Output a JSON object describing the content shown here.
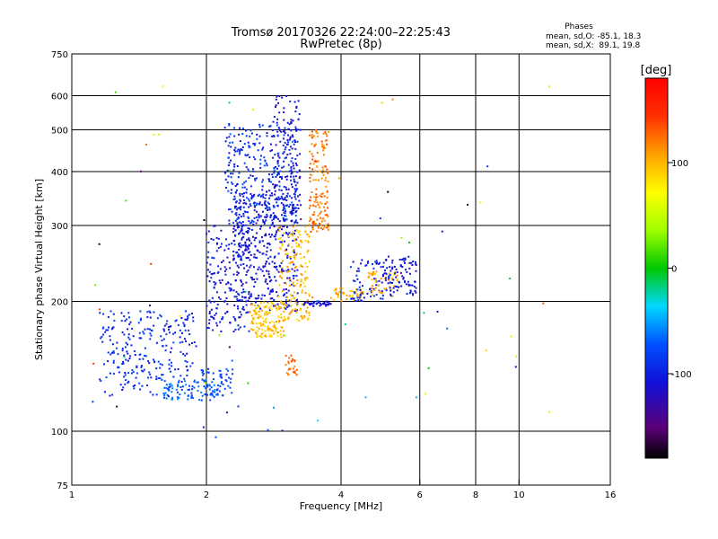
{
  "chart_data": {
    "type": "scatter",
    "title": "Tromsø 20170326 22:24:00–22:25:43",
    "subtitle": "RwPretec (8p)",
    "stats": {
      "heading": "Phases",
      "line_o": "mean, sd,O: -85.1, 18.3",
      "line_x": "mean, sd,X:  89.1, 19.8"
    },
    "xlabel": "Frequency [MHz]",
    "ylabel": "Stationary phase Virtual Height [km]",
    "x_scale": "log",
    "y_scale": "log",
    "xlim": [
      1,
      16
    ],
    "ylim": [
      75,
      750
    ],
    "x_ticks": [
      1,
      2,
      4,
      6,
      8,
      10,
      16
    ],
    "y_ticks": [
      75,
      100,
      200,
      300,
      400,
      500,
      600,
      750
    ],
    "x_gridlines": [
      2,
      4,
      6,
      8,
      10
    ],
    "y_gridlines": [
      100,
      200,
      300,
      400,
      500,
      600
    ],
    "grid": true,
    "colorbar": {
      "label": "[deg]",
      "ticks": [
        100,
        0,
        -100
      ],
      "range": [
        -180,
        180
      ]
    },
    "clusters": [
      {
        "f": [
          1.15,
          1.9
        ],
        "h": [
          120,
          190
        ],
        "phase": [
          -110,
          -80
        ],
        "n": 260
      },
      {
        "f": [
          1.6,
          2.1
        ],
        "h": [
          118,
          132
        ],
        "phase": [
          -80,
          -55
        ],
        "n": 70
      },
      {
        "f": [
          1.95,
          2.3
        ],
        "h": [
          120,
          140
        ],
        "phase": [
          -95,
          -65
        ],
        "n": 60
      },
      {
        "f": [
          2.0,
          2.5
        ],
        "h": [
          170,
          300
        ],
        "phase": [
          -120,
          -90
        ],
        "n": 180
      },
      {
        "f": [
          2.3,
          3.2
        ],
        "h": [
          190,
          360
        ],
        "phase": [
          -125,
          -95
        ],
        "n": 420
      },
      {
        "f": [
          2.2,
          3.2
        ],
        "h": [
          300,
          520
        ],
        "phase": [
          -115,
          -70
        ],
        "n": 320
      },
      {
        "f": [
          2.8,
          3.25
        ],
        "h": [
          320,
          600
        ],
        "phase": [
          -125,
          -100
        ],
        "n": 110
      },
      {
        "f": [
          2.5,
          3.0
        ],
        "h": [
          165,
          200
        ],
        "phase": [
          80,
          115
        ],
        "n": 140
      },
      {
        "f": [
          2.9,
          3.4
        ],
        "h": [
          180,
          300
        ],
        "phase": [
          85,
          120
        ],
        "n": 160
      },
      {
        "f": [
          3.0,
          3.2
        ],
        "h": [
          135,
          150
        ],
        "phase": [
          115,
          140
        ],
        "n": 25
      },
      {
        "f": [
          3.4,
          3.75
        ],
        "h": [
          290,
          500
        ],
        "phase": [
          105,
          140
        ],
        "n": 150
      },
      {
        "f": [
          3.3,
          3.8
        ],
        "h": [
          195,
          200
        ],
        "phase": [
          -125,
          -100
        ],
        "n": 40
      },
      {
        "f": [
          3.8,
          4.5
        ],
        "h": [
          200,
          215
        ],
        "phase": [
          85,
          115
        ],
        "n": 45
      },
      {
        "f": [
          4.2,
          5.0
        ],
        "h": [
          200,
          250
        ],
        "phase": [
          -115,
          -85
        ],
        "n": 70
      },
      {
        "f": [
          4.6,
          5.4
        ],
        "h": [
          205,
          235
        ],
        "phase": [
          90,
          120
        ],
        "n": 45
      },
      {
        "f": [
          5.0,
          5.9
        ],
        "h": [
          205,
          255
        ],
        "phase": [
          -120,
          -95
        ],
        "n": 90
      },
      {
        "f": [
          1.05,
          12.0
        ],
        "h": [
          95,
          650
        ],
        "phase": [
          -180,
          180
        ],
        "n": 70
      }
    ]
  }
}
